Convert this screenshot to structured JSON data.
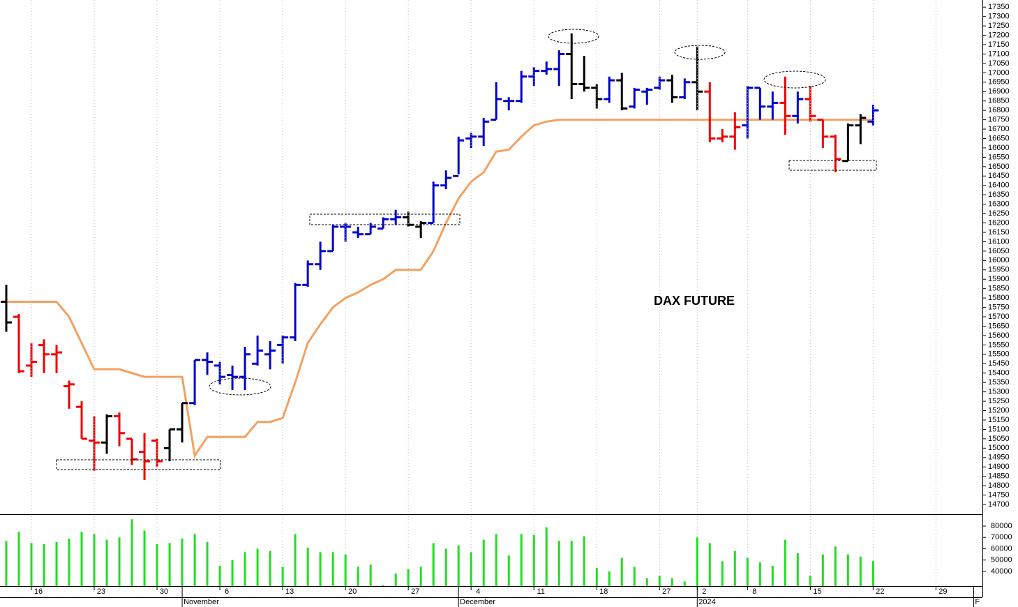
{
  "chart_data": [
    {
      "type": "ohlc",
      "title": "DAX FUTURE",
      "open": [
        15780,
        15700,
        15440,
        15550,
        15500,
        15330,
        15220,
        15040,
        15030,
        15170,
        15050,
        14980,
        15040,
        15000,
        15100,
        15240,
        15470,
        15440,
        15390,
        15380,
        15450,
        15500,
        15550,
        15590,
        15870,
        15980,
        16050,
        16180,
        16150,
        16140,
        16170,
        16220,
        16230,
        16180,
        16200,
        16400,
        16450,
        16650,
        16660,
        16750,
        16850,
        16850,
        16980,
        17010,
        17020,
        17100,
        16940,
        16920,
        16860,
        16960,
        16820,
        16900,
        16920,
        16960,
        16870,
        16950,
        16900,
        16650,
        16660,
        16720,
        16920,
        16820,
        16840,
        16770,
        16860,
        16750,
        16660,
        16530,
        16720,
        16740
      ],
      "high": [
        15870,
        15715,
        15560,
        15580,
        15550,
        15360,
        15250,
        15170,
        15180,
        15190,
        15050,
        15080,
        15050,
        15100,
        15240,
        15470,
        15510,
        15460,
        15440,
        15540,
        15600,
        15570,
        15600,
        15880,
        16000,
        16100,
        16190,
        16200,
        16180,
        16200,
        16230,
        16270,
        16260,
        16210,
        16420,
        16480,
        16660,
        16680,
        16760,
        16950,
        16870,
        17010,
        17030,
        17060,
        17120,
        17210,
        17090,
        16940,
        16980,
        17000,
        16920,
        16920,
        16980,
        16990,
        16970,
        17140,
        16950,
        16700,
        16790,
        16930,
        16920,
        16900,
        16980,
        16900,
        16930,
        16750,
        16670,
        16730,
        16780,
        16830
      ],
      "low": [
        15620,
        15400,
        15380,
        15400,
        15400,
        15210,
        15050,
        14880,
        14970,
        15010,
        14910,
        14830,
        14900,
        14930,
        15030,
        15230,
        15390,
        15340,
        15310,
        15310,
        15440,
        15420,
        15450,
        15570,
        15860,
        15950,
        16050,
        16100,
        16120,
        16140,
        16170,
        16190,
        16180,
        16120,
        16200,
        16380,
        16460,
        16600,
        16610,
        16750,
        16800,
        16840,
        16930,
        16990,
        16930,
        16860,
        16900,
        16810,
        16840,
        16800,
        16810,
        16830,
        16910,
        16840,
        16860,
        16800,
        16630,
        16630,
        16590,
        16650,
        16750,
        16750,
        16670,
        16730,
        16740,
        16600,
        16470,
        16530,
        16620,
        16720
      ],
      "close": [
        15670,
        15410,
        15460,
        15500,
        15510,
        15340,
        15050,
        15030,
        15170,
        15080,
        14940,
        14930,
        14930,
        15100,
        15240,
        15470,
        15460,
        15380,
        15380,
        15500,
        15520,
        15520,
        15590,
        15870,
        15980,
        16050,
        16180,
        16180,
        16140,
        16180,
        16220,
        16230,
        16190,
        16200,
        16400,
        16440,
        16640,
        16660,
        16740,
        16860,
        16850,
        16980,
        17010,
        17020,
        17100,
        16940,
        16920,
        16860,
        16960,
        16810,
        16910,
        16910,
        16960,
        16870,
        16950,
        16900,
        16650,
        16660,
        16710,
        16920,
        16820,
        16840,
        16770,
        16860,
        16770,
        16660,
        16540,
        16720,
        16760,
        16800
      ],
      "bar_colors": [
        "#000000",
        "#ee0000",
        "#ee0000",
        "#ee0000",
        "#ee0000",
        "#ee0000",
        "#ee0000",
        "#ee0000",
        "#000000",
        "#ee0000",
        "#ee0000",
        "#ee0000",
        "#ee0000",
        "#000000",
        "#000000",
        "#0000cc",
        "#0000cc",
        "#0000cc",
        "#0000cc",
        "#0000cc",
        "#0000cc",
        "#0000cc",
        "#0000cc",
        "#0000cc",
        "#0000cc",
        "#0000cc",
        "#0000cc",
        "#0000cc",
        "#0000cc",
        "#0000cc",
        "#0000cc",
        "#0000cc",
        "#000000",
        "#000000",
        "#0000cc",
        "#0000cc",
        "#0000cc",
        "#0000cc",
        "#0000cc",
        "#0000cc",
        "#0000cc",
        "#0000cc",
        "#0000cc",
        "#0000cc",
        "#0000cc",
        "#000000",
        "#000000",
        "#000000",
        "#0000cc",
        "#000000",
        "#0000cc",
        "#0000cc",
        "#0000cc",
        "#000000",
        "#0000cc",
        "#000000",
        "#ee0000",
        "#ee0000",
        "#ee0000",
        "#0000cc",
        "#0000cc",
        "#0000cc",
        "#ee0000",
        "#0000cc",
        "#ee0000",
        "#ee0000",
        "#ee0000",
        "#000000",
        "#000000",
        "#0000cc"
      ],
      "line": {
        "color": "#f5a060",
        "values": [
          15780,
          15780,
          15780,
          15780,
          15780,
          15700,
          15560,
          15420,
          15420,
          15420,
          15400,
          15380,
          15380,
          15380,
          15380,
          14960,
          15060,
          15060,
          15060,
          15060,
          15140,
          15140,
          15160,
          15350,
          15560,
          15660,
          15750,
          15800,
          15830,
          15870,
          15900,
          15950,
          15950,
          15950,
          16050,
          16200,
          16330,
          16420,
          16470,
          16580,
          16590,
          16660,
          16720,
          16740,
          16750,
          16750,
          16750,
          16750,
          16750,
          16750,
          16750,
          16750,
          16750,
          16750,
          16750,
          16750,
          16750,
          16750,
          16750,
          16750,
          16750,
          16750,
          16750,
          16750,
          16750,
          16750,
          16750,
          16750,
          16750,
          16750
        ]
      },
      "xlim": [
        -0.5,
        77.7
      ],
      "ylim": [
        14648,
        17388
      ],
      "yticks": [
        14700,
        14750,
        14800,
        14850,
        14900,
        14950,
        15000,
        15050,
        15100,
        15150,
        15200,
        15250,
        15300,
        15350,
        15400,
        15450,
        15500,
        15550,
        15600,
        15650,
        15700,
        15750,
        15800,
        15850,
        15900,
        15950,
        16000,
        16050,
        16100,
        16150,
        16200,
        16250,
        16300,
        16350,
        16400,
        16450,
        16500,
        16550,
        16600,
        16650,
        16700,
        16750,
        16800,
        16850,
        16900,
        16950,
        17000,
        17050,
        17100,
        17150,
        17200,
        17250,
        17300,
        17350
      ],
      "grid": true
    },
    {
      "type": "bar",
      "color": "#22dd22",
      "values": [
        67000,
        75000,
        65000,
        64000,
        66000,
        69000,
        75000,
        73000,
        68000,
        70000,
        86000,
        76000,
        64000,
        65000,
        69000,
        73000,
        66000,
        45000,
        50000,
        57000,
        60000,
        58000,
        44000,
        73000,
        61000,
        57000,
        57000,
        55000,
        44000,
        46000,
        28000,
        38000,
        42000,
        44000,
        65000,
        60000,
        63000,
        57000,
        68000,
        73000,
        54000,
        73000,
        72000,
        79000,
        67000,
        67000,
        71000,
        43000,
        40000,
        52000,
        44000,
        34000,
        36000,
        34000,
        31000,
        70000,
        65000,
        49000,
        58000,
        52000,
        48000,
        45000,
        68000,
        56000,
        36000,
        55000,
        62000,
        55000,
        53000,
        49000
      ],
      "xlim": [
        -0.5,
        77.7
      ],
      "ylim": [
        27000,
        90500
      ],
      "yticks": [
        40000,
        50000,
        60000,
        70000,
        80000
      ],
      "xticks": [
        {
          "value": 2,
          "label": "16"
        },
        {
          "value": 7,
          "label": "23"
        },
        {
          "value": 12,
          "label": "30"
        },
        {
          "value": 17,
          "label": "6"
        },
        {
          "value": 22,
          "label": "13"
        },
        {
          "value": 27,
          "label": "20"
        },
        {
          "value": 32,
          "label": "27"
        },
        {
          "value": 37,
          "label": "4"
        },
        {
          "value": 42,
          "label": "11"
        },
        {
          "value": 47,
          "label": "18"
        },
        {
          "value": 52,
          "label": "27"
        },
        {
          "value": 55,
          "label": "2"
        },
        {
          "value": 59,
          "label": "8"
        },
        {
          "value": 64,
          "label": "15"
        },
        {
          "value": 69,
          "label": "22"
        },
        {
          "value": 74,
          "label": "29"
        }
      ],
      "month_ticks": [
        {
          "value": 14,
          "label": "November"
        },
        {
          "value": 36,
          "label": "December"
        },
        {
          "value": 55,
          "label": "2024"
        },
        {
          "value": 77,
          "label": "F"
        }
      ],
      "grid": true
    }
  ]
}
